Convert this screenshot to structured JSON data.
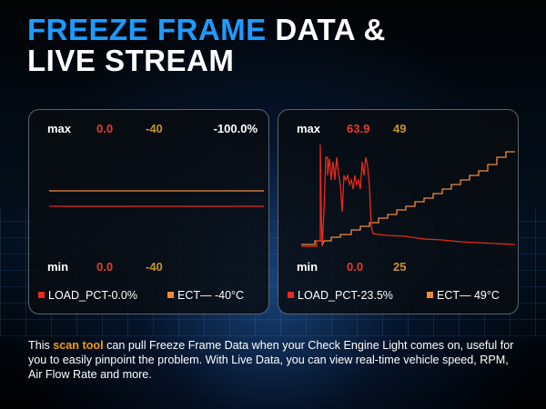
{
  "title": {
    "accent": "FREEZE FRAME",
    "rest1": " DATA &",
    "line2": "LIVE STREAM"
  },
  "colors": {
    "accent": "#1e9bff",
    "load": "#e8291c",
    "ect": "#f08a3a",
    "highlight": "#f39a1a"
  },
  "panels": [
    {
      "max_label": "max",
      "max_load": "0.0",
      "max_ect": "-40",
      "pct": "-100.0%",
      "min_label": "min",
      "min_load": "0.0",
      "min_ect": "-40",
      "legend_load": "LOAD_PCT-0.0%",
      "legend_ect": "ECT— -40°C"
    },
    {
      "max_label": "max",
      "max_load": "63.9",
      "max_ect": "49",
      "min_label": "min",
      "min_load": "0.0",
      "min_ect": "25",
      "legend_load": "LOAD_PCT-23.5%",
      "legend_ect": "ECT— 49°C"
    }
  ],
  "description": {
    "pre": "This ",
    "highlight": "scan tool",
    "post": " can pull Freeze Frame Data when your Check Engine Light comes on, useful for you to easily pinpoint the problem. With Live Data, you can view real-time vehicle speed, RPM, Air Flow Rate and more."
  }
}
